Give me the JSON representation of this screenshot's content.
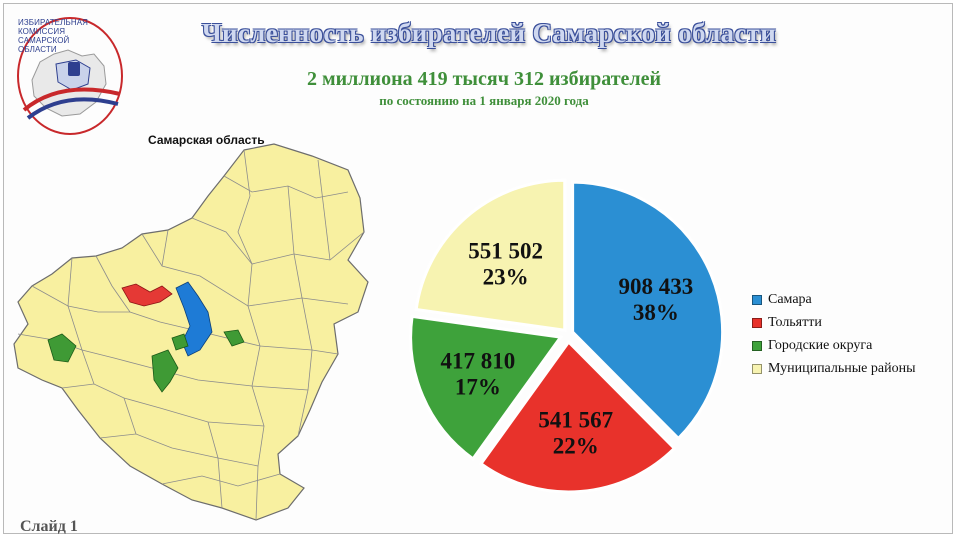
{
  "logo": {
    "lines": [
      "Избирательная",
      "комиссия",
      "Самарской",
      "области"
    ]
  },
  "header": {
    "title": "Численность избирателей Самарской области",
    "subtitle": "2 миллиона 419 тысяч 312 избирателей",
    "date": "по состоянию на 1 января 2020 года"
  },
  "map": {
    "title": "Самарская область",
    "highlight_colors": {
      "region": "#f8f0a0",
      "tolyatti": "#e53935",
      "okruga": "#3f9a35",
      "samara": "#1e7bd6"
    }
  },
  "chart_data": {
    "type": "pie",
    "labels": [
      "Самара",
      "Тольятти",
      "Городские округа",
      "Муниципальные районы"
    ],
    "values": [
      908433,
      541567,
      417810,
      551502
    ],
    "value_labels": [
      "908 433",
      "541 567",
      "417 810",
      "551 502"
    ],
    "percent_labels": [
      "38%",
      "22%",
      "17%",
      "23%"
    ],
    "colors": [
      "#2b8fd3",
      "#e8322b",
      "#3ea23b",
      "#f7f3b1"
    ],
    "legend_position": "right"
  },
  "footer": {
    "slide": "Слайд 1"
  }
}
